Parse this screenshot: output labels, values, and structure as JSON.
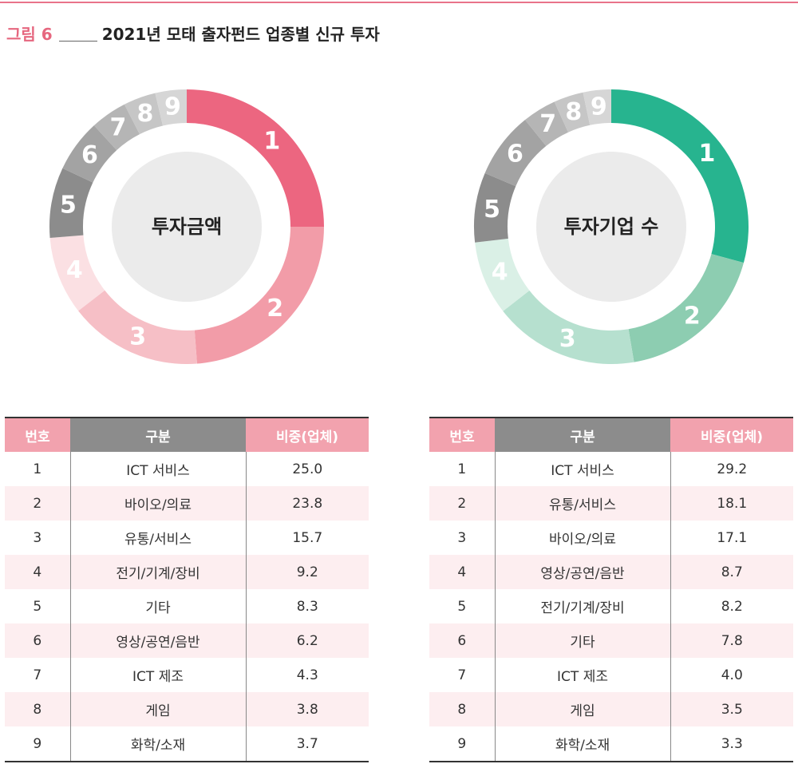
{
  "figure": {
    "label": "그림 6",
    "title": "2021년 모태 출자펀드 업종별 신규 투자"
  },
  "chart_data": [
    {
      "type": "pie",
      "title": "투자금액",
      "categories": [
        "1",
        "2",
        "3",
        "4",
        "5",
        "6",
        "7",
        "8",
        "9"
      ],
      "values": [
        25.0,
        23.8,
        15.7,
        9.2,
        8.3,
        6.2,
        4.3,
        3.8,
        3.7
      ],
      "colors": [
        "#ec6680",
        "#f29ca8",
        "#f6bfc6",
        "#fbe0e3",
        "#8c8c8c",
        "#a3a3a3",
        "#b5b5b5",
        "#c6c6c6",
        "#d6d6d6"
      ]
    },
    {
      "type": "pie",
      "title": "투자기업 수",
      "categories": [
        "1",
        "2",
        "3",
        "4",
        "5",
        "6",
        "7",
        "8",
        "9"
      ],
      "values": [
        29.2,
        18.1,
        17.1,
        8.7,
        8.2,
        7.8,
        4.0,
        3.5,
        3.3
      ],
      "colors": [
        "#27b48f",
        "#8dcdb1",
        "#b6e0cf",
        "#daf0e6",
        "#8c8c8c",
        "#a3a3a3",
        "#b5b5b5",
        "#c6c6c6",
        "#d6d6d6"
      ]
    }
  ],
  "tables": {
    "headers": [
      "번호",
      "구분",
      "비중(업체)"
    ],
    "left_rows": [
      [
        "1",
        "ICT 서비스",
        "25.0"
      ],
      [
        "2",
        "바이오/의료",
        "23.8"
      ],
      [
        "3",
        "유통/서비스",
        "15.7"
      ],
      [
        "4",
        "전기/기계/장비",
        "9.2"
      ],
      [
        "5",
        "기타",
        "8.3"
      ],
      [
        "6",
        "영상/공연/음반",
        "6.2"
      ],
      [
        "7",
        "ICT 제조",
        "4.3"
      ],
      [
        "8",
        "게임",
        "3.8"
      ],
      [
        "9",
        "화학/소재",
        "3.7"
      ]
    ],
    "right_rows": [
      [
        "1",
        "ICT 서비스",
        "29.2"
      ],
      [
        "2",
        "유통/서비스",
        "18.1"
      ],
      [
        "3",
        "바이오/의료",
        "17.1"
      ],
      [
        "4",
        "영상/공연/음반",
        "8.7"
      ],
      [
        "5",
        "전기/기계/장비",
        "8.2"
      ],
      [
        "6",
        "기타",
        "7.8"
      ],
      [
        "7",
        "ICT 제조",
        "4.0"
      ],
      [
        "8",
        "게임",
        "3.5"
      ],
      [
        "9",
        "화학/소재",
        "3.3"
      ]
    ]
  }
}
